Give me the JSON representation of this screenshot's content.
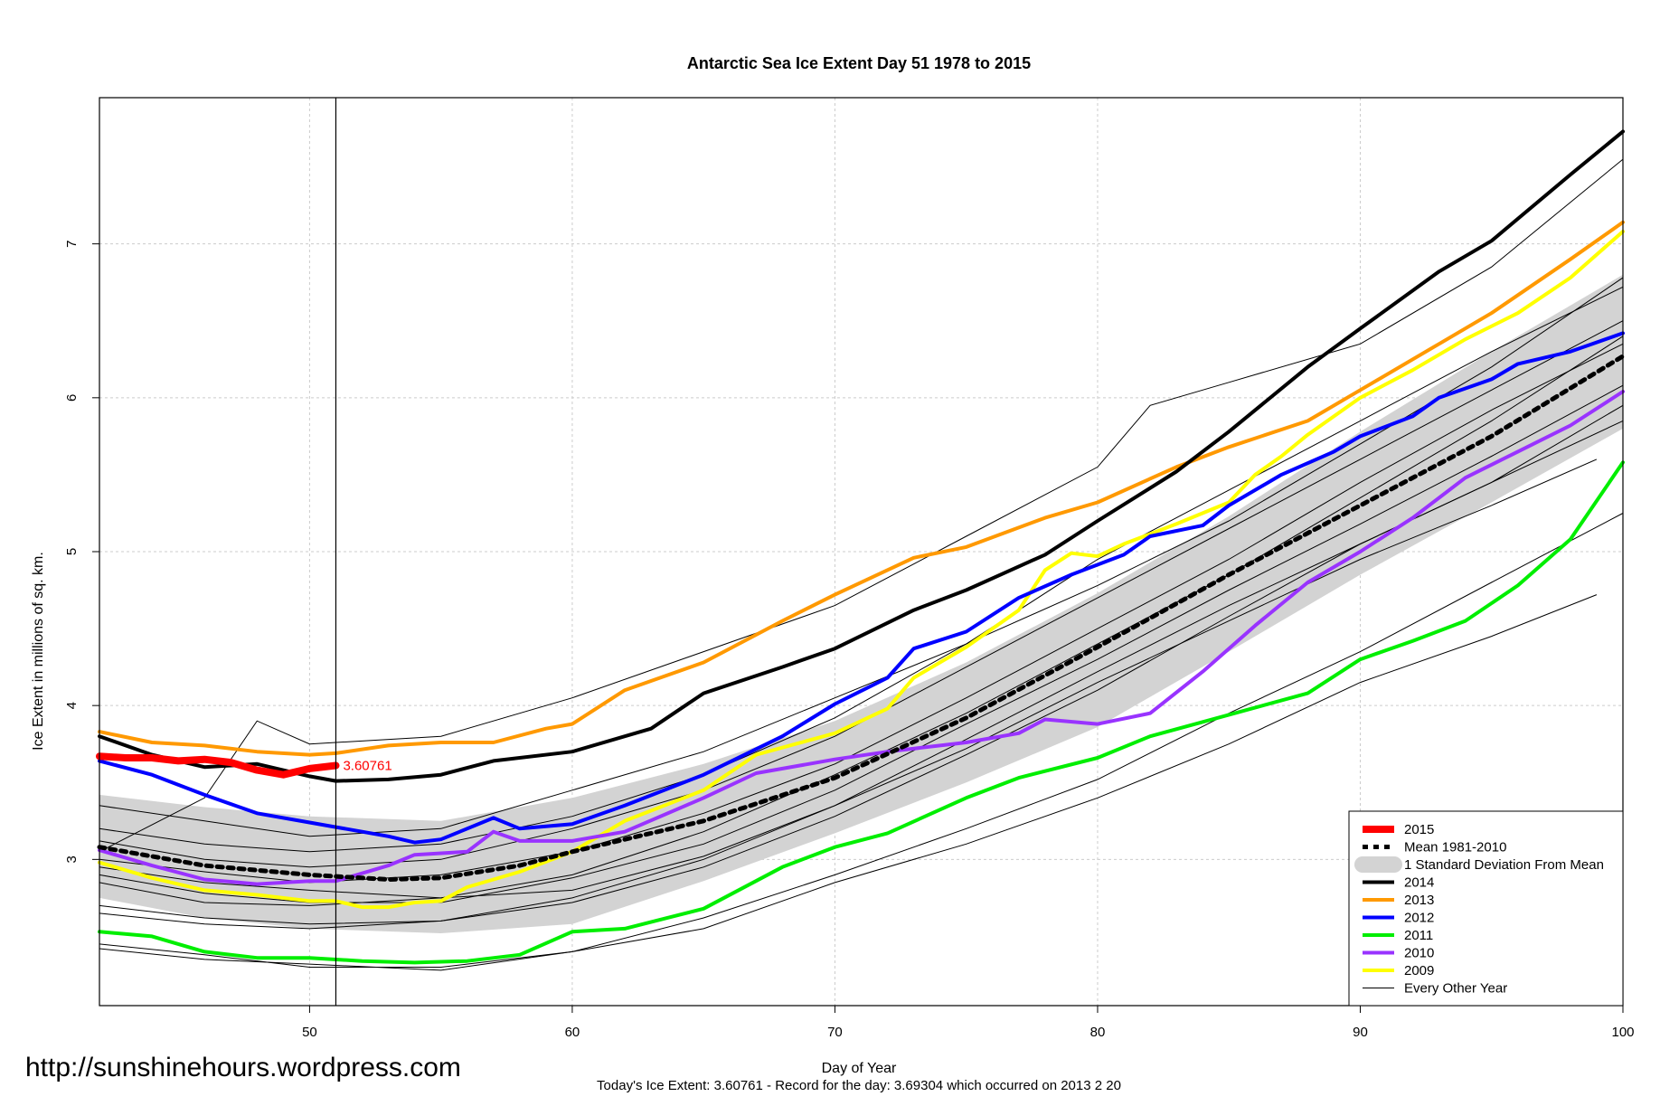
{
  "chart_data": {
    "type": "line",
    "title": "Antarctic Sea Ice Extent Day 51 1978 to 2015",
    "xlabel": "Day of Year",
    "ylabel": "Ice Extent in millions of sq. km.",
    "xlim": [
      42,
      100
    ],
    "ylim": [
      2.05,
      7.95
    ],
    "x_ticks": [
      50,
      60,
      70,
      80,
      90,
      100
    ],
    "y_ticks": [
      3,
      4,
      5,
      6,
      7
    ],
    "grid": true,
    "legend_position": "bottom-right",
    "marker_day": 51,
    "today_label": "3.60761",
    "footer": "Today's Ice Extent: 3.60761  - Record for the day: 3.69304 which occurred on 2013 2 20",
    "source_url": "http://sunshinehours.wordpress.com",
    "sd_band": {
      "name": "1 Standard Deviation From Mean",
      "color": "#d3d3d3",
      "x": [
        42,
        46,
        50,
        55,
        60,
        65,
        70,
        75,
        80,
        85,
        90,
        95,
        100
      ],
      "upper": [
        3.42,
        3.34,
        3.28,
        3.25,
        3.4,
        3.62,
        3.9,
        4.28,
        4.73,
        5.23,
        5.78,
        6.3,
        6.8
      ],
      "lower": [
        2.75,
        2.62,
        2.55,
        2.52,
        2.58,
        2.86,
        3.17,
        3.5,
        3.86,
        4.35,
        4.85,
        5.32,
        5.8
      ]
    },
    "series": [
      {
        "name": "2015",
        "color": "#ff0000",
        "width": 8,
        "x": [
          42,
          43,
          44,
          45,
          46,
          47,
          48,
          49,
          50,
          51
        ],
        "y": [
          3.67,
          3.66,
          3.66,
          3.64,
          3.65,
          3.63,
          3.58,
          3.55,
          3.59,
          3.61
        ]
      },
      {
        "name": "Mean 1981-2010",
        "color": "#000000",
        "width": 5,
        "dash": "6,6",
        "x": [
          42,
          46,
          50,
          53,
          55,
          58,
          60,
          65,
          70,
          75,
          80,
          85,
          90,
          95,
          100
        ],
        "y": [
          3.08,
          2.96,
          2.9,
          2.87,
          2.88,
          2.96,
          3.05,
          3.25,
          3.53,
          3.92,
          4.38,
          4.85,
          5.3,
          5.75,
          6.27
        ]
      },
      {
        "name": "2014",
        "color": "#000000",
        "width": 4,
        "x": [
          42,
          44,
          46,
          48,
          50,
          51,
          53,
          55,
          57,
          60,
          63,
          65,
          68,
          70,
          73,
          75,
          78,
          80,
          83,
          85,
          88,
          90,
          93,
          95,
          98,
          100
        ],
        "y": [
          3.8,
          3.68,
          3.6,
          3.62,
          3.54,
          3.51,
          3.52,
          3.55,
          3.64,
          3.7,
          3.85,
          4.08,
          4.25,
          4.37,
          4.62,
          4.75,
          4.98,
          5.2,
          5.52,
          5.78,
          6.2,
          6.45,
          6.82,
          7.02,
          7.45,
          7.73
        ]
      },
      {
        "name": "2013",
        "color": "#ff9900",
        "width": 4,
        "x": [
          42,
          44,
          46,
          48,
          50,
          51,
          53,
          55,
          57,
          59,
          60,
          62,
          65,
          68,
          70,
          73,
          75,
          78,
          80,
          83,
          85,
          88,
          90,
          93,
          95,
          98,
          100
        ],
        "y": [
          3.83,
          3.76,
          3.74,
          3.7,
          3.68,
          3.69,
          3.74,
          3.76,
          3.76,
          3.85,
          3.88,
          4.1,
          4.28,
          4.55,
          4.72,
          4.96,
          5.03,
          5.22,
          5.32,
          5.55,
          5.68,
          5.85,
          6.05,
          6.35,
          6.55,
          6.9,
          7.14
        ]
      },
      {
        "name": "2012",
        "color": "#0000ff",
        "width": 4,
        "x": [
          42,
          44,
          46,
          48,
          50,
          51,
          53,
          54,
          55,
          57,
          58,
          60,
          62,
          65,
          68,
          70,
          72,
          73,
          75,
          77,
          79,
          81,
          82,
          84,
          85,
          87,
          89,
          90,
          92,
          93,
          95,
          96,
          98,
          100
        ],
        "y": [
          3.64,
          3.55,
          3.42,
          3.3,
          3.24,
          3.21,
          3.15,
          3.11,
          3.13,
          3.27,
          3.2,
          3.23,
          3.35,
          3.55,
          3.8,
          4.01,
          4.18,
          4.37,
          4.48,
          4.7,
          4.85,
          4.98,
          5.1,
          5.17,
          5.3,
          5.5,
          5.65,
          5.75,
          5.88,
          6.0,
          6.12,
          6.22,
          6.3,
          6.42
        ]
      },
      {
        "name": "2011",
        "color": "#00ee00",
        "width": 4,
        "x": [
          42,
          44,
          46,
          48,
          50,
          52,
          54,
          56,
          58,
          60,
          62,
          65,
          68,
          70,
          72,
          75,
          77,
          80,
          82,
          85,
          88,
          90,
          92,
          94,
          96,
          98,
          100
        ],
        "y": [
          2.53,
          2.5,
          2.4,
          2.36,
          2.36,
          2.34,
          2.33,
          2.34,
          2.38,
          2.53,
          2.55,
          2.68,
          2.95,
          3.08,
          3.17,
          3.4,
          3.53,
          3.66,
          3.8,
          3.94,
          4.08,
          4.3,
          4.42,
          4.55,
          4.78,
          5.08,
          5.58
        ]
      },
      {
        "name": "2010",
        "color": "#9933ff",
        "width": 4,
        "x": [
          42,
          44,
          46,
          48,
          50,
          51,
          53,
          54,
          56,
          57,
          58,
          60,
          62,
          65,
          67,
          70,
          72,
          75,
          77,
          78,
          80,
          82,
          84,
          86,
          88,
          90,
          92,
          94,
          96,
          98,
          100
        ],
        "y": [
          3.06,
          2.96,
          2.87,
          2.84,
          2.86,
          2.86,
          2.96,
          3.03,
          3.05,
          3.18,
          3.12,
          3.12,
          3.18,
          3.4,
          3.56,
          3.65,
          3.7,
          3.76,
          3.82,
          3.91,
          3.88,
          3.95,
          4.22,
          4.52,
          4.8,
          5.0,
          5.22,
          5.48,
          5.65,
          5.82,
          6.04
        ]
      },
      {
        "name": "2009",
        "color": "#ffff00",
        "width": 4,
        "x": [
          42,
          44,
          46,
          48,
          50,
          51,
          52,
          53,
          54,
          55,
          56,
          58,
          60,
          62,
          65,
          67,
          70,
          72,
          73,
          75,
          77,
          78,
          79,
          80,
          81,
          83,
          85,
          86,
          87,
          88,
          90,
          92,
          94,
          96,
          98,
          100
        ],
        "y": [
          2.98,
          2.88,
          2.8,
          2.77,
          2.73,
          2.73,
          2.69,
          2.69,
          2.72,
          2.73,
          2.82,
          2.92,
          3.05,
          3.25,
          3.45,
          3.68,
          3.82,
          3.98,
          4.18,
          4.38,
          4.62,
          4.88,
          4.99,
          4.97,
          5.05,
          5.18,
          5.32,
          5.5,
          5.62,
          5.76,
          6.0,
          6.18,
          6.38,
          6.55,
          6.78,
          7.08
        ]
      }
    ],
    "other_years_label": "Every Other Year",
    "other_years_color": "#000000",
    "other_years": [
      {
        "x": [
          42,
          46,
          50,
          55,
          60,
          65,
          70,
          75,
          80,
          85,
          90,
          95,
          100
        ],
        "y": [
          3.35,
          3.25,
          3.15,
          3.2,
          3.45,
          3.7,
          4.05,
          4.4,
          4.78,
          5.2,
          5.7,
          6.2,
          6.78
        ]
      },
      {
        "x": [
          42,
          46,
          50,
          55,
          60,
          65,
          70,
          75,
          80,
          85,
          90,
          95,
          100
        ],
        "y": [
          3.12,
          3.0,
          2.95,
          3.0,
          3.2,
          3.45,
          3.8,
          4.25,
          4.7,
          5.15,
          5.6,
          6.05,
          6.5
        ]
      },
      {
        "x": [
          42,
          46,
          50,
          55,
          60,
          65,
          70,
          75,
          80,
          85,
          90,
          95,
          100
        ],
        "y": [
          2.85,
          2.72,
          2.7,
          2.75,
          2.9,
          3.18,
          3.55,
          3.95,
          4.4,
          4.85,
          5.35,
          5.85,
          6.4
        ]
      },
      {
        "x": [
          42,
          46,
          50,
          55,
          60,
          65,
          70,
          75,
          80,
          85,
          90,
          95,
          100
        ],
        "y": [
          2.65,
          2.58,
          2.55,
          2.6,
          2.72,
          2.95,
          3.28,
          3.68,
          4.1,
          4.58,
          5.05,
          5.45,
          5.85
        ]
      },
      {
        "x": [
          42,
          46,
          50,
          55,
          60,
          65,
          70,
          75,
          80,
          85,
          90,
          95,
          100
        ],
        "y": [
          2.45,
          2.38,
          2.3,
          2.3,
          2.4,
          2.62,
          2.9,
          3.2,
          3.52,
          3.95,
          4.35,
          4.8,
          5.25
        ]
      },
      {
        "x": [
          42,
          46,
          50,
          55,
          60,
          65,
          70,
          75,
          80,
          85,
          90,
          95,
          99
        ],
        "y": [
          2.42,
          2.35,
          2.32,
          2.28,
          2.4,
          2.55,
          2.85,
          3.1,
          3.4,
          3.75,
          4.15,
          4.45,
          4.72
        ]
      },
      {
        "x": [
          42,
          46,
          50,
          55,
          60,
          65,
          70,
          75,
          80,
          85,
          90,
          95,
          99
        ],
        "y": [
          2.95,
          2.85,
          2.8,
          2.75,
          2.8,
          3.02,
          3.35,
          3.72,
          4.15,
          4.55,
          4.95,
          5.3,
          5.6
        ]
      },
      {
        "x": [
          42,
          46,
          50,
          55,
          60,
          65,
          70,
          75,
          80,
          85,
          90,
          95,
          100
        ],
        "y": [
          3.2,
          3.1,
          3.05,
          3.1,
          3.28,
          3.55,
          3.92,
          4.4,
          4.95,
          5.4,
          5.85,
          6.3,
          6.72
        ]
      },
      {
        "x": [
          42,
          46,
          48,
          50,
          55,
          60,
          65,
          70,
          75,
          80,
          82,
          85,
          90,
          95,
          100
        ],
        "y": [
          3.05,
          3.4,
          3.9,
          3.75,
          3.8,
          4.05,
          4.35,
          4.65,
          5.1,
          5.55,
          5.95,
          6.1,
          6.35,
          6.85,
          7.55
        ]
      },
      {
        "x": [
          42,
          46,
          50,
          55,
          60,
          65,
          70,
          75,
          80,
          85,
          90,
          95,
          100
        ],
        "y": [
          2.7,
          2.62,
          2.58,
          2.6,
          2.75,
          3.0,
          3.35,
          3.78,
          4.22,
          4.65,
          5.05,
          5.45,
          5.95
        ]
      },
      {
        "x": [
          42,
          46,
          50,
          55,
          60,
          65,
          70,
          75,
          80,
          85,
          90,
          95,
          100
        ],
        "y": [
          2.9,
          2.78,
          2.72,
          2.72,
          2.88,
          3.1,
          3.45,
          3.88,
          4.3,
          4.75,
          5.18,
          5.62,
          6.08
        ]
      },
      {
        "x": [
          42,
          46,
          50,
          55,
          60,
          65,
          70,
          75,
          80,
          85,
          90,
          95,
          100
        ],
        "y": [
          3.0,
          2.92,
          2.85,
          2.9,
          3.05,
          3.3,
          3.62,
          4.05,
          4.5,
          4.95,
          5.45,
          5.92,
          6.35
        ]
      }
    ]
  }
}
